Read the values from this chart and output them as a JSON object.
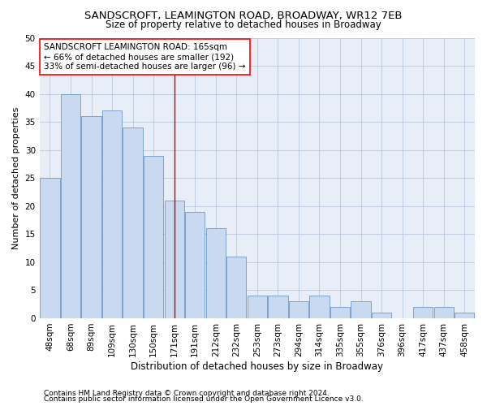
{
  "title1": "SANDSCROFT, LEAMINGTON ROAD, BROADWAY, WR12 7EB",
  "title2": "Size of property relative to detached houses in Broadway",
  "xlabel": "Distribution of detached houses by size in Broadway",
  "ylabel": "Number of detached properties",
  "categories": [
    "48sqm",
    "68sqm",
    "89sqm",
    "109sqm",
    "130sqm",
    "150sqm",
    "171sqm",
    "191sqm",
    "212sqm",
    "232sqm",
    "253sqm",
    "273sqm",
    "294sqm",
    "314sqm",
    "335sqm",
    "355sqm",
    "376sqm",
    "396sqm",
    "417sqm",
    "437sqm",
    "458sqm"
  ],
  "values": [
    25,
    40,
    36,
    37,
    34,
    29,
    21,
    19,
    16,
    11,
    4,
    4,
    3,
    4,
    2,
    3,
    1,
    0,
    2,
    2,
    1
  ],
  "bar_color": "#c9d9f0",
  "bar_edge_color": "#7098c8",
  "vline_x": 6,
  "vline_color": "#cc0000",
  "annotation_text": "SANDSCROFT LEAMINGTON ROAD: 165sqm\n← 66% of detached houses are smaller (192)\n33% of semi-detached houses are larger (96) →",
  "ylim": [
    0,
    50
  ],
  "yticks": [
    0,
    5,
    10,
    15,
    20,
    25,
    30,
    35,
    40,
    45,
    50
  ],
  "footnote1": "Contains HM Land Registry data © Crown copyright and database right 2024.",
  "footnote2": "Contains public sector information licensed under the Open Government Licence v3.0.",
  "bg_color": "#e8eef8",
  "grid_color": "#b8c8e0",
  "title_fontsize": 9.5,
  "subtitle_fontsize": 8.5,
  "axis_label_fontsize": 8.5,
  "tick_fontsize": 7.5,
  "annotation_fontsize": 7.5,
  "footnote_fontsize": 6.5,
  "ylabel_fontsize": 8
}
